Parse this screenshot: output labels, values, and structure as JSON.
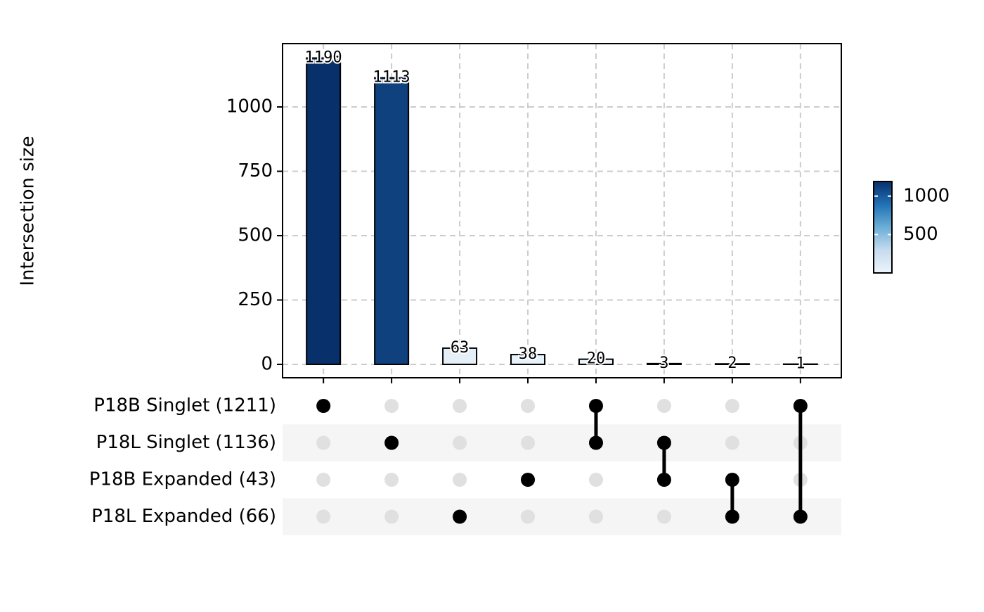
{
  "chart_data": {
    "type": "upset",
    "y_label": "Intersection size",
    "values": [
      1190,
      1113,
      63,
      38,
      20,
      3,
      2,
      1
    ],
    "ylim": [
      -52,
      1246
    ],
    "yticks": [
      0,
      250,
      500,
      750,
      1000
    ],
    "grid": true,
    "sets": [
      "P18B Singlet (1211)",
      "P18L Singlet (1136)",
      "P18B Expanded (43)",
      "P18L Expanded (66)"
    ],
    "intersections": [
      [
        0
      ],
      [
        1
      ],
      [
        3
      ],
      [
        2
      ],
      [
        0,
        1
      ],
      [
        1,
        2
      ],
      [
        2,
        3
      ],
      [
        0,
        3
      ]
    ],
    "color_scale": {
      "colors": [
        "#ecf4fb",
        "#c6dbef",
        "#6baed6",
        "#2171b5",
        "#08306b"
      ],
      "lim": [
        1,
        1190
      ],
      "ticks": [
        500,
        1000
      ]
    }
  }
}
